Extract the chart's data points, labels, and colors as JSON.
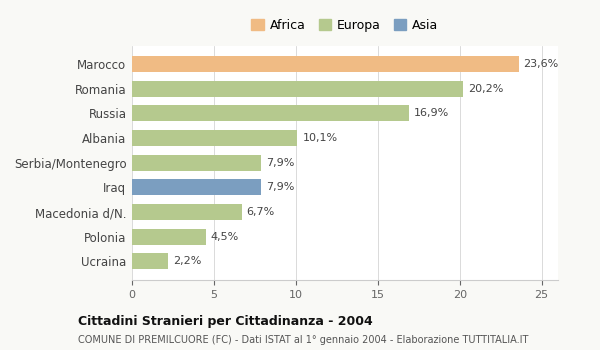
{
  "categories": [
    "Ucraina",
    "Polonia",
    "Macedonia d/N.",
    "Iraq",
    "Serbia/Montenegro",
    "Albania",
    "Russia",
    "Romania",
    "Marocco"
  ],
  "values": [
    2.2,
    4.5,
    6.7,
    7.9,
    7.9,
    10.1,
    16.9,
    20.2,
    23.6
  ],
  "colors": [
    "#b5c98e",
    "#b5c98e",
    "#b5c98e",
    "#7b9ec0",
    "#b5c98e",
    "#b5c98e",
    "#b5c98e",
    "#b5c98e",
    "#f0bb84"
  ],
  "labels": [
    "2,2%",
    "4,5%",
    "6,7%",
    "7,9%",
    "7,9%",
    "10,1%",
    "16,9%",
    "20,2%",
    "23,6%"
  ],
  "legend": [
    {
      "label": "Africa",
      "color": "#f0bb84"
    },
    {
      "label": "Europa",
      "color": "#b5c98e"
    },
    {
      "label": "Asia",
      "color": "#7b9ec0"
    }
  ],
  "xlim": [
    0,
    26
  ],
  "xticks": [
    0,
    5,
    10,
    15,
    20,
    25
  ],
  "title": "Cittadini Stranieri per Cittadinanza - 2004",
  "subtitle": "COMUNE DI PREMILCUORE (FC) - Dati ISTAT al 1° gennaio 2004 - Elaborazione TUTTITALIA.IT",
  "bg_color": "#f9f9f6",
  "plot_bg_color": "#ffffff"
}
